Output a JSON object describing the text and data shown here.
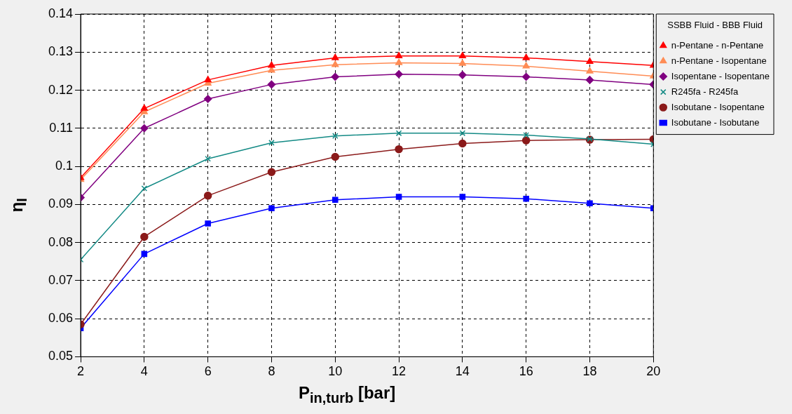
{
  "chart_data": {
    "type": "line",
    "xlabel": "P$_{in,turb}$ [bar]",
    "ylabel": "η$_{I}$",
    "legend_title": "SSBB Fluid - BBB Fluid",
    "x": [
      2,
      4,
      6,
      8,
      10,
      12,
      14,
      16,
      18,
      20
    ],
    "xlim": [
      2,
      20
    ],
    "xticks": [
      2,
      4,
      6,
      8,
      10,
      12,
      14,
      16,
      18,
      20
    ],
    "ylim": [
      0.05,
      0.14
    ],
    "yticks": [
      0.05,
      0.06,
      0.07,
      0.08,
      0.09,
      0.1,
      0.11,
      0.12,
      0.13,
      0.14
    ],
    "grid": true,
    "legend": "right",
    "line_style": "solid",
    "series": [
      {
        "name": "n-Pentane - n-Pentane",
        "color": "#ff0000",
        "marker": "triangle",
        "values": [
          0.097,
          0.1152,
          0.1227,
          0.1265,
          0.1285,
          0.129,
          0.129,
          0.1285,
          0.1275,
          0.1265
        ]
      },
      {
        "name": "n-Pentane - Isopentane",
        "color": "#ff8c55",
        "marker": "triangle",
        "values": [
          0.0965,
          0.1143,
          0.1218,
          0.1252,
          0.1267,
          0.1272,
          0.127,
          0.1263,
          0.125,
          0.1237
        ]
      },
      {
        "name": "Isopentane - Isopentane",
        "color": "#800080",
        "marker": "diamond",
        "values": [
          0.0918,
          0.11,
          0.1177,
          0.1215,
          0.1235,
          0.1242,
          0.124,
          0.1235,
          0.1227,
          0.1215
        ]
      },
      {
        "name": "R245fa - R245fa",
        "color": "#138a85",
        "marker": "cross",
        "values": [
          0.0755,
          0.0942,
          0.102,
          0.1062,
          0.108,
          0.1087,
          0.1087,
          0.1082,
          0.1072,
          0.1058
        ]
      },
      {
        "name": "Isobutane - Isopentane",
        "color": "#8b1a1a",
        "marker": "circle",
        "values": [
          0.0585,
          0.0815,
          0.0923,
          0.0985,
          0.1025,
          0.1045,
          0.106,
          0.1068,
          0.107,
          0.1071
        ]
      },
      {
        "name": "Isobutane - Isobutane",
        "color": "#0000ff",
        "marker": "square",
        "values": [
          0.0575,
          0.077,
          0.085,
          0.089,
          0.0912,
          0.092,
          0.092,
          0.0915,
          0.0903,
          0.089
        ]
      }
    ]
  }
}
